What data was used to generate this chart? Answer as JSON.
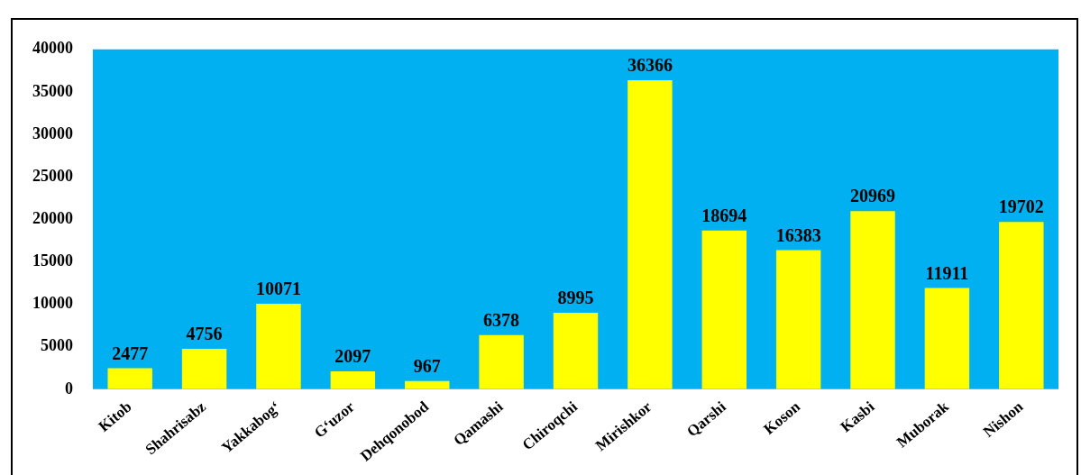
{
  "chart_data": {
    "type": "bar",
    "categories": [
      "Kitob",
      "Shahrisabz",
      "Yakkabog‘",
      "G‘uzor",
      "Dehqonobod",
      "Qamashi",
      "Chiroqchi",
      "Mirishkor",
      "Qarshi",
      "Koson",
      "Kasbi",
      "Muborak",
      "Nishon"
    ],
    "values": [
      2477,
      4756,
      10071,
      2097,
      967,
      6378,
      8995,
      36366,
      18694,
      16383,
      20969,
      11911,
      19702
    ],
    "color": "#ffff00",
    "ylim": [
      0,
      40000
    ],
    "yticks": [
      0,
      5000,
      10000,
      15000,
      20000,
      25000,
      30000,
      35000,
      40000
    ],
    "grid": false,
    "legend": false,
    "data_labels": true
  }
}
